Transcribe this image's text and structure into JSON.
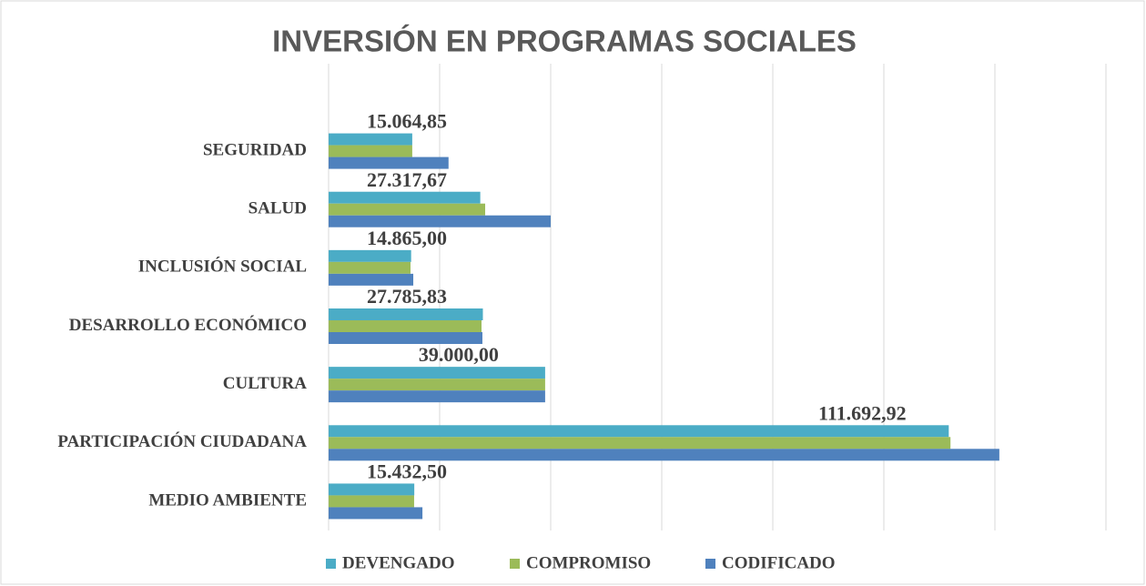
{
  "chart_data": {
    "type": "hbar",
    "title": "INVERSIÓN EN PROGRAMAS SOCIALES",
    "categories": [
      "SEGURIDAD",
      "SALUD",
      "INCLUSIÓN SOCIAL",
      "DESARROLLO ECONÓMICO",
      "CULTURA",
      "PARTICIPACIÓN CIUDADANA",
      "MEDIO AMBIENTE"
    ],
    "series": [
      {
        "name": "DEVENGADO",
        "color": "#4bacc6",
        "values": [
          15064.85,
          27317.67,
          14865.0,
          27785.83,
          39000.0,
          111692.92,
          15432.5
        ],
        "value_labels": [
          "15.064,85",
          "27.317,67",
          "14.865,00",
          "27.785,83",
          "39.000,00",
          "111.692,92",
          "15.432,50"
        ]
      },
      {
        "name": "COMPROMISO",
        "color": "#9bbb59",
        "values": [
          15065,
          28200,
          14750,
          27540,
          39000,
          112000,
          15400
        ]
      },
      {
        "name": "CODIFICADO",
        "color": "#4f81bd",
        "values": [
          21600,
          40000,
          15250,
          27700,
          39000,
          120800,
          16900
        ]
      }
    ],
    "xlim": [
      0,
      140000
    ],
    "xticks": [
      0,
      20000,
      40000,
      60000,
      80000,
      100000,
      120000,
      140000
    ],
    "grid": true,
    "legend": "bottom"
  }
}
